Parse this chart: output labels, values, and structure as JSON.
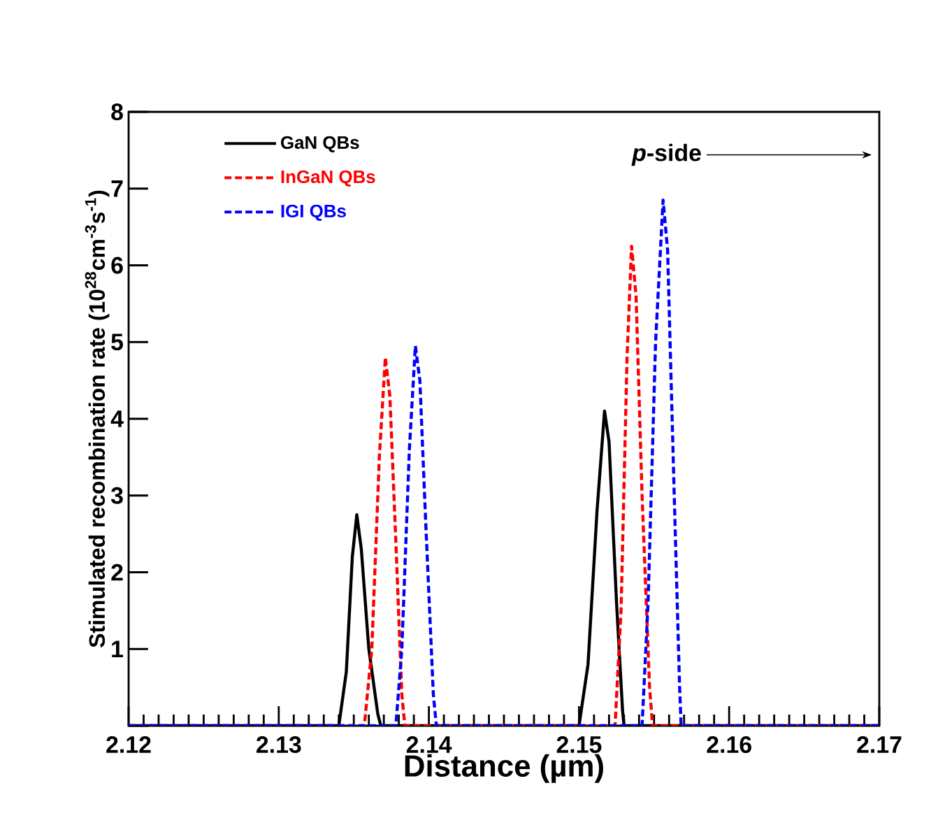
{
  "chart_data": {
    "type": "line",
    "xlabel": "Distance (µm)",
    "ylabel": "Stimulated recombination rate (10$^{28}$cm$^{-3}$s$^{-1}$)",
    "xlim": [
      2.12,
      2.17
    ],
    "xticks": [
      2.12,
      2.13,
      2.14,
      2.15,
      2.16,
      2.17
    ],
    "ylim": [
      0,
      8
    ],
    "yticks": [
      {
        "value": 0,
        "label": null
      },
      1,
      2,
      3,
      4,
      5,
      6,
      7,
      8
    ],
    "legend": "top left",
    "grid": false,
    "marker": "none",
    "annotations": [
      "*p*-side"
    ],
    "series": [
      {
        "name": "GaN QBs",
        "color": "#000000",
        "line_style": "solid",
        "x": [
          2.12,
          2.134,
          2.1345,
          2.1349,
          2.1352,
          2.1355,
          2.136,
          2.1366,
          2.1368,
          2.15,
          2.1506,
          2.1512,
          2.1517,
          2.152,
          2.1525,
          2.1529,
          2.153,
          2.17
        ],
        "values": [
          0,
          0,
          0.7,
          2.2,
          2.75,
          2.3,
          1.0,
          0.15,
          0,
          0,
          0.8,
          2.8,
          4.1,
          3.7,
          1.6,
          0.2,
          0,
          0
        ]
      },
      {
        "name": "InGaN QBs",
        "color": "#ff0000",
        "line_style": "dashed",
        "x": [
          2.12,
          2.1357,
          2.1362,
          2.1367,
          2.1371,
          2.1374,
          2.1378,
          2.1382,
          2.1384,
          2.1524,
          2.1528,
          2.1532,
          2.1535,
          2.1538,
          2.1542,
          2.1547,
          2.1549,
          2.17
        ],
        "values": [
          0,
          0,
          1.0,
          3.5,
          4.8,
          4.3,
          2.4,
          0.4,
          0,
          0,
          1.5,
          4.8,
          6.25,
          5.6,
          3.0,
          0.5,
          0,
          0
        ]
      },
      {
        "name": "IGI QBs",
        "color": "#0000ff",
        "line_style": "dashed",
        "x": [
          2.12,
          2.1378,
          2.1382,
          2.1387,
          2.1391,
          2.1394,
          2.1398,
          2.1403,
          2.1405,
          2.1542,
          2.1546,
          2.1551,
          2.1556,
          2.1559,
          2.1563,
          2.1567,
          2.1568,
          2.17
        ],
        "values": [
          0,
          0,
          1.0,
          3.6,
          4.95,
          4.5,
          2.6,
          0.4,
          0,
          0,
          1.6,
          5.0,
          6.85,
          6.2,
          3.3,
          0.5,
          0,
          0
        ]
      }
    ]
  }
}
